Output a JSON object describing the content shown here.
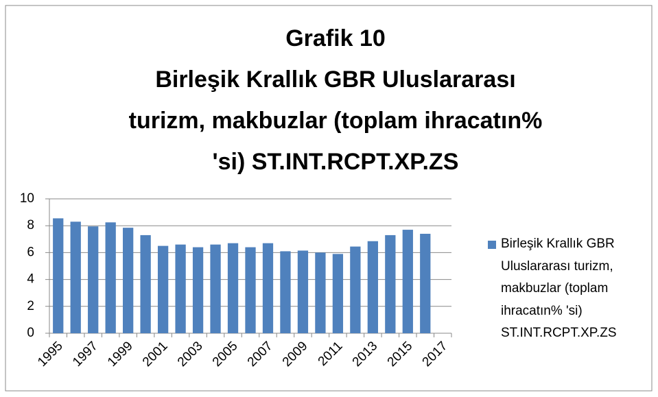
{
  "chart_data": {
    "type": "bar",
    "title": [
      "Grafik 10",
      "Birleşik Krallık GBR Uluslararası",
      "turizm, makbuzlar (toplam ihracatın%",
      "'si) ST.INT.RCPT.XP.ZS"
    ],
    "categories": [
      "1995",
      null,
      "1997",
      null,
      "1999",
      null,
      "2001",
      null,
      "2003",
      null,
      "2005",
      null,
      "2007",
      null,
      "2009",
      null,
      "2011",
      null,
      "2013",
      null,
      "2015",
      null,
      "2017"
    ],
    "series": [
      {
        "name": "Birleşik Krallık GBR Uluslararası turizm, makbuzlar (toplam ihracatın% 'si) ST.INT.RCPT.XP.ZS",
        "color": "#4f81bd",
        "values": [
          8.55,
          8.3,
          7.95,
          8.25,
          7.85,
          7.3,
          6.5,
          6.6,
          6.4,
          6.6,
          6.7,
          6.4,
          6.7,
          6.1,
          6.15,
          6.0,
          5.9,
          6.45,
          6.85,
          7.3,
          7.7,
          7.4,
          null
        ]
      }
    ],
    "ylim": [
      0,
      10
    ],
    "yticks": [
      0,
      2,
      4,
      6,
      8,
      10
    ],
    "grid": true,
    "legend": "right"
  }
}
